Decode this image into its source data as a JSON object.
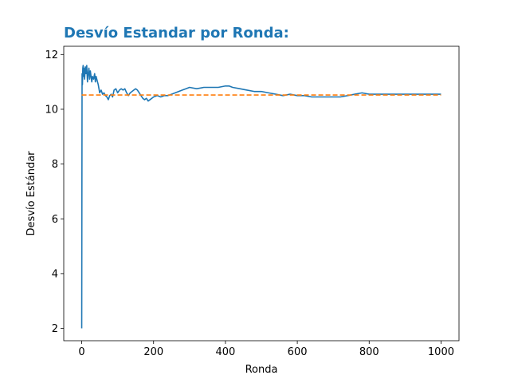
{
  "chart_data": {
    "type": "line",
    "title": "Desvío Estandar por Ronda:",
    "xlabel": "Ronda",
    "ylabel": "Desvío Estándar",
    "xlim": [
      -50,
      1050
    ],
    "ylim": [
      1.55,
      12.3
    ],
    "xticks": [
      0,
      200,
      400,
      600,
      800,
      1000
    ],
    "yticks": [
      2,
      4,
      6,
      8,
      10,
      12
    ],
    "grid": false,
    "colors": {
      "title": "#1f77b4",
      "line": "#1f77b4",
      "reference": "#ff7f0e"
    },
    "series": [
      {
        "style": "solid",
        "x": [
          0,
          1,
          2,
          3,
          4,
          5,
          6,
          8,
          10,
          12,
          14,
          16,
          18,
          20,
          22,
          24,
          26,
          28,
          30,
          33,
          36,
          38,
          40,
          43,
          46,
          50,
          54,
          58,
          62,
          66,
          70,
          74,
          78,
          82,
          86,
          90,
          95,
          100,
          105,
          110,
          115,
          120,
          125,
          130,
          135,
          140,
          145,
          150,
          155,
          160,
          165,
          170,
          175,
          180,
          185,
          190,
          195,
          200,
          210,
          220,
          230,
          240,
          250,
          260,
          270,
          280,
          290,
          300,
          320,
          340,
          360,
          380,
          400,
          410,
          420,
          440,
          460,
          480,
          500,
          520,
          540,
          560,
          580,
          600,
          620,
          640,
          660,
          680,
          700,
          720,
          740,
          760,
          780,
          800,
          820,
          840,
          860,
          880,
          900,
          920,
          940,
          960,
          980,
          1000
        ],
        "y": [
          2.0,
          11.3,
          10.9,
          11.5,
          11.6,
          11.2,
          11.5,
          11.1,
          11.55,
          11.3,
          11.6,
          11.0,
          11.3,
          11.5,
          11.1,
          11.4,
          11.2,
          11.0,
          11.2,
          11.1,
          11.3,
          11.0,
          11.2,
          11.05,
          10.9,
          10.6,
          10.7,
          10.55,
          10.6,
          10.5,
          10.45,
          10.35,
          10.5,
          10.55,
          10.45,
          10.7,
          10.75,
          10.6,
          10.7,
          10.75,
          10.7,
          10.75,
          10.6,
          10.5,
          10.6,
          10.65,
          10.7,
          10.75,
          10.7,
          10.6,
          10.5,
          10.4,
          10.35,
          10.4,
          10.3,
          10.35,
          10.4,
          10.45,
          10.5,
          10.45,
          10.5,
          10.5,
          10.55,
          10.6,
          10.65,
          10.7,
          10.75,
          10.8,
          10.75,
          10.8,
          10.8,
          10.8,
          10.85,
          10.85,
          10.8,
          10.75,
          10.7,
          10.65,
          10.65,
          10.6,
          10.55,
          10.5,
          10.55,
          10.5,
          10.5,
          10.45,
          10.45,
          10.45,
          10.45,
          10.45,
          10.5,
          10.55,
          10.6,
          10.55,
          10.55,
          10.55,
          10.55,
          10.55,
          10.55,
          10.55,
          10.55,
          10.55,
          10.55,
          10.55
        ]
      },
      {
        "style": "dashed",
        "x": [
          0,
          1000
        ],
        "y": [
          10.52,
          10.52
        ]
      }
    ]
  }
}
